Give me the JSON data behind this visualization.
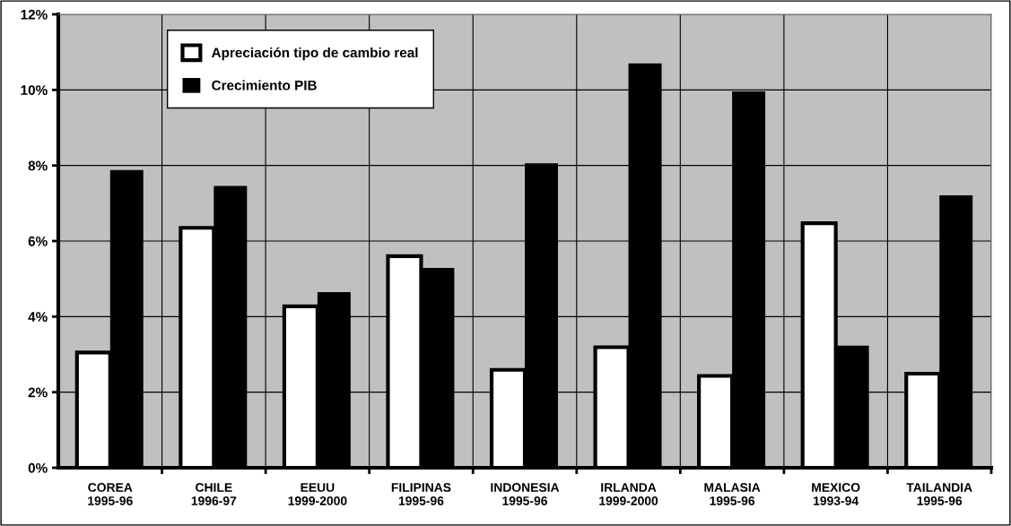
{
  "chart_data": {
    "type": "bar",
    "categories": [
      "COREA\n1995-96",
      "CHILE\n1996-97",
      "EEUU\n1999-2000",
      "FILIPINAS\n1995-96",
      "INDONESIA\n1995-96",
      "IRLANDA\n1999-2000",
      "MALASIA\n1995-96",
      "MEXICO\n1993-94",
      "TAILANDIA\n1995-96"
    ],
    "series": [
      {
        "name": "Apreciación tipo de cambio real",
        "color": "#ffffff",
        "values": [
          3.05,
          6.35,
          4.27,
          5.6,
          2.59,
          3.19,
          2.43,
          6.47,
          2.49
        ]
      },
      {
        "name": "Crecimiento PIB",
        "color": "#000000",
        "values": [
          7.88,
          7.46,
          4.65,
          5.29,
          8.06,
          10.7,
          9.96,
          3.23,
          7.21
        ]
      }
    ],
    "ylim": [
      0,
      12
    ],
    "yticks": [
      {
        "value": 0,
        "label": "0%"
      },
      {
        "value": 2,
        "label": "2%"
      },
      {
        "value": 4,
        "label": "4%"
      },
      {
        "value": 6,
        "label": "6%"
      },
      {
        "value": 8,
        "label": "8%"
      },
      {
        "value": 10,
        "label": "10%"
      },
      {
        "value": 12,
        "label": "12%"
      }
    ],
    "grid": true,
    "legend": "top left"
  }
}
